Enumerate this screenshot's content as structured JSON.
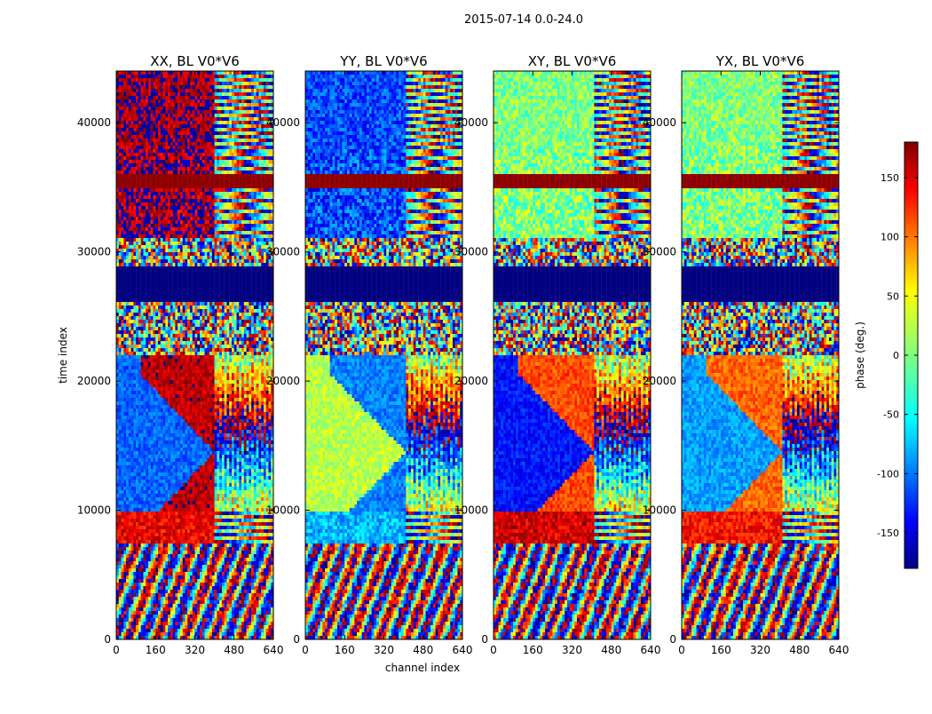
{
  "chart_data": {
    "type": "heatmap",
    "title": "2015-07-14 0.0-24.0",
    "xlabel": "channel index",
    "ylabel": "time index",
    "xlim": [
      0,
      640
    ],
    "ylim": [
      0,
      44000
    ],
    "x_ticks": [
      "0",
      "160",
      "320",
      "480",
      "640"
    ],
    "y_ticks": [
      "0",
      "10000",
      "20000",
      "30000",
      "40000"
    ],
    "x_tick_values": [
      0,
      160,
      320,
      480,
      640
    ],
    "y_tick_values": [
      0,
      10000,
      20000,
      30000,
      40000
    ],
    "panels": [
      {
        "id": "xx",
        "title": "XX, BL V0*V6",
        "high_phase_band": [
          36000,
          35000
        ],
        "low_phase_band": [
          29000,
          26000
        ],
        "transition_channel": 400,
        "main_phase": 160,
        "upper_phase": 170,
        "mid_phase": -100,
        "lower_phase": 140
      },
      {
        "id": "yy",
        "title": "YY, BL V0*V6",
        "high_phase_band": [
          36000,
          35000
        ],
        "low_phase_band": [
          29000,
          26000
        ],
        "transition_channel": 410,
        "main_phase": -90,
        "upper_phase": -110,
        "mid_phase": 20,
        "lower_phase": -70
      },
      {
        "id": "xy",
        "title": "XY, BL V0*V6",
        "high_phase_band": [
          36000,
          35000
        ],
        "low_phase_band": [
          29000,
          26000
        ],
        "transition_channel": 410,
        "main_phase": 110,
        "upper_phase": 0,
        "mid_phase": -130,
        "lower_phase": 150
      },
      {
        "id": "yx",
        "title": "YX, BL V0*V6",
        "high_phase_band": [
          36000,
          35000
        ],
        "low_phase_band": [
          29000,
          26000
        ],
        "transition_channel": 410,
        "main_phase": 100,
        "upper_phase": 0,
        "mid_phase": -80,
        "lower_phase": 130
      }
    ],
    "colorbar": {
      "label": "phase (deg.)",
      "ticks": [
        "-150",
        "-100",
        "-50",
        "0",
        "50",
        "100",
        "150"
      ],
      "tick_values": [
        -150,
        -100,
        -50,
        0,
        50,
        100,
        150
      ],
      "range": [
        -180,
        180
      ],
      "colormap": "jet"
    }
  }
}
